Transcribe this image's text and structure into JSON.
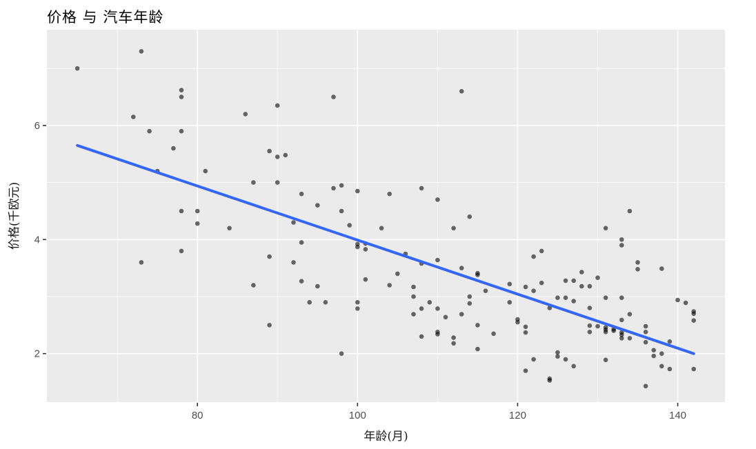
{
  "chart_data": {
    "type": "scatter",
    "title": "价格 与 汽车年龄",
    "xlabel": "年龄(月)",
    "ylabel": "价格(千欧元)",
    "xlim": [
      61.2,
      145.9
    ],
    "ylim": [
      1.15,
      7.68
    ],
    "x_major_ticks": [
      80,
      100,
      120,
      140
    ],
    "x_minor_ticks": [
      70,
      90,
      110,
      130
    ],
    "y_major_ticks": [
      2,
      4,
      6
    ],
    "y_minor_ticks": [
      3,
      5,
      7
    ],
    "grid": "ggplot major+minor white on gray panel",
    "legend": "none",
    "trend_line": {
      "type": "linear-fit",
      "from": [
        65,
        5.65
      ],
      "to": [
        142,
        2.0
      ]
    },
    "points": [
      [
        65,
        7.0
      ],
      [
        73,
        7.3
      ],
      [
        78,
        6.62
      ],
      [
        78,
        6.5
      ],
      [
        90,
        6.35
      ],
      [
        86,
        6.2
      ],
      [
        72,
        6.15
      ],
      [
        74,
        5.9
      ],
      [
        78,
        5.9
      ],
      [
        77,
        5.6
      ],
      [
        89,
        5.55
      ],
      [
        90,
        5.45
      ],
      [
        91,
        5.48
      ],
      [
        75,
        5.2
      ],
      [
        81,
        5.2
      ],
      [
        87,
        5.0
      ],
      [
        90,
        5.0
      ],
      [
        78,
        4.5
      ],
      [
        80,
        4.5
      ],
      [
        97,
        6.5
      ],
      [
        113,
        6.6
      ],
      [
        98,
        4.95
      ],
      [
        97,
        4.9
      ],
      [
        100,
        4.85
      ],
      [
        93,
        4.8
      ],
      [
        104,
        4.8
      ],
      [
        108,
        4.9
      ],
      [
        110,
        4.7
      ],
      [
        95,
        4.6
      ],
      [
        98,
        4.5
      ],
      [
        114,
        4.4
      ],
      [
        134,
        4.5
      ],
      [
        80,
        4.28
      ],
      [
        84,
        4.2
      ],
      [
        78,
        3.8
      ],
      [
        73,
        3.6
      ],
      [
        89,
        3.7
      ],
      [
        87,
        3.2
      ],
      [
        89,
        2.5
      ],
      [
        92,
        4.3
      ],
      [
        99,
        4.25
      ],
      [
        103,
        4.2
      ],
      [
        112,
        4.2
      ],
      [
        93,
        3.95
      ],
      [
        100,
        3.92
      ],
      [
        100,
        3.87
      ],
      [
        101,
        3.93
      ],
      [
        101,
        3.83
      ],
      [
        106,
        3.75
      ],
      [
        108,
        3.58
      ],
      [
        110,
        3.64
      ],
      [
        92,
        3.6
      ],
      [
        105,
        3.4
      ],
      [
        101,
        3.3
      ],
      [
        93,
        3.27
      ],
      [
        95,
        3.18
      ],
      [
        104,
        3.2
      ],
      [
        107,
        3.17
      ],
      [
        113,
        3.5
      ],
      [
        115,
        3.41
      ],
      [
        115,
        3.38
      ],
      [
        116,
        3.1
      ],
      [
        119,
        3.22
      ],
      [
        107,
        3.0
      ],
      [
        109,
        2.9
      ],
      [
        114,
        3.0
      ],
      [
        114,
        2.88
      ],
      [
        94,
        2.9
      ],
      [
        96,
        2.9
      ],
      [
        100,
        2.9
      ],
      [
        100,
        2.79
      ],
      [
        108,
        2.79
      ],
      [
        110,
        2.79
      ],
      [
        107,
        2.69
      ],
      [
        111,
        2.64
      ],
      [
        113,
        2.69
      ],
      [
        119,
        2.9
      ],
      [
        120,
        2.6
      ],
      [
        120,
        2.55
      ],
      [
        115,
        2.5
      ],
      [
        110,
        2.38
      ],
      [
        110,
        2.34
      ],
      [
        108,
        2.3
      ],
      [
        112,
        2.28
      ],
      [
        112,
        2.18
      ],
      [
        117,
        2.35
      ],
      [
        115,
        2.08
      ],
      [
        98,
        2.0
      ],
      [
        131,
        4.2
      ],
      [
        133,
        4.0
      ],
      [
        133,
        3.9
      ],
      [
        123,
        3.8
      ],
      [
        122,
        3.7
      ],
      [
        135,
        3.6
      ],
      [
        135,
        3.48
      ],
      [
        138,
        3.49
      ],
      [
        128,
        3.43
      ],
      [
        130,
        3.33
      ],
      [
        126,
        3.28
      ],
      [
        127,
        3.28
      ],
      [
        123,
        3.24
      ],
      [
        128,
        3.18
      ],
      [
        129,
        3.18
      ],
      [
        121,
        3.17
      ],
      [
        122,
        3.1
      ],
      [
        125,
        2.98
      ],
      [
        126,
        2.98
      ],
      [
        127,
        2.92
      ],
      [
        131,
        2.98
      ],
      [
        133,
        2.98
      ],
      [
        124,
        2.8
      ],
      [
        129,
        2.8
      ],
      [
        140,
        2.94
      ],
      [
        141,
        2.89
      ],
      [
        142,
        2.74
      ],
      [
        142,
        2.7
      ],
      [
        142,
        2.58
      ],
      [
        134,
        2.69
      ],
      [
        133,
        2.59
      ],
      [
        121,
        2.47
      ],
      [
        121,
        2.37
      ],
      [
        129,
        2.49
      ],
      [
        129,
        2.38
      ],
      [
        130,
        2.48
      ],
      [
        131,
        2.46
      ],
      [
        131,
        2.42
      ],
      [
        131,
        2.38
      ],
      [
        132,
        2.43
      ],
      [
        132,
        2.4
      ],
      [
        133,
        2.37
      ],
      [
        133,
        2.33
      ],
      [
        133,
        2.27
      ],
      [
        134,
        2.27
      ],
      [
        136,
        2.48
      ],
      [
        136,
        2.38
      ],
      [
        136,
        2.2
      ],
      [
        137,
        2.06
      ],
      [
        137,
        1.96
      ],
      [
        138,
        2.0
      ],
      [
        139,
        2.21
      ],
      [
        125,
        2.02
      ],
      [
        125,
        1.95
      ],
      [
        122,
        1.9
      ],
      [
        126,
        1.9
      ],
      [
        127,
        1.78
      ],
      [
        131,
        1.89
      ],
      [
        121,
        1.7
      ],
      [
        124,
        1.56
      ],
      [
        124,
        1.53
      ],
      [
        138,
        1.78
      ],
      [
        139,
        1.73
      ],
      [
        142,
        1.73
      ],
      [
        136,
        1.43
      ]
    ]
  },
  "style": {
    "background": "#FFFFFF",
    "panel_bg": "#EBEBEB",
    "grid_color": "#FFFFFF",
    "point_color": "#000000",
    "point_opacity": 0.58,
    "trend_line_color": "#3366FF",
    "axis_text_color": "#4D4D4D",
    "tick_mark_color": "#333333",
    "title_color": "#000000"
  }
}
